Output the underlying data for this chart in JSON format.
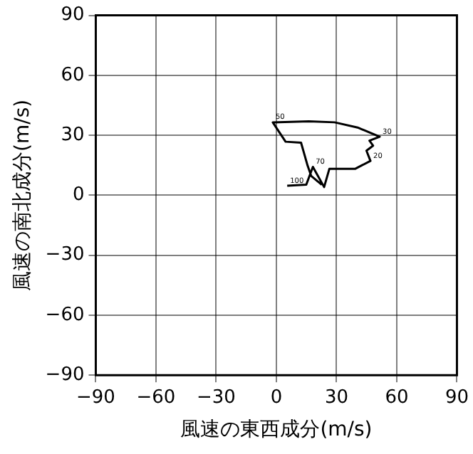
{
  "chart_data": {
    "type": "line",
    "xlabel": "風速の東西成分(m/s)",
    "ylabel": "風速の南北成分(m/s)",
    "xlim": [
      -90,
      90
    ],
    "ylim": [
      -90,
      90
    ],
    "xticks": [
      -90,
      -60,
      -30,
      0,
      30,
      60,
      90
    ],
    "yticks": [
      -90,
      -60,
      -30,
      0,
      30,
      60,
      90
    ],
    "grid": true,
    "marker": "none",
    "line_style": "solid",
    "series": [
      {
        "color": "#000000",
        "x": [
          5.4,
          14.9,
          18.2,
          23.8,
          26.4,
          39.2,
          46.9,
          44.9,
          48.2,
          46.4,
          51.5,
          40.5,
          29.0,
          16.2,
          -1.8,
          4.6,
          12.3,
          15.6,
          17.4,
          22.6
        ],
        "values": [
          4.8,
          5.3,
          14.2,
          4.1,
          13.2,
          13.2,
          17.2,
          22.3,
          24.8,
          27.3,
          29.3,
          33.9,
          36.5,
          37.0,
          36.5,
          26.8,
          26.3,
          14.7,
          9.6,
          5.3
        ]
      }
    ],
    "annotations": [
      {
        "text": "100",
        "x": 5.4,
        "y": 4.8
      },
      {
        "text": "70",
        "x": 18.2,
        "y": 14.2
      },
      {
        "text": "20",
        "x": 46.9,
        "y": 17.2
      },
      {
        "text": "30",
        "x": 51.5,
        "y": 29.3
      },
      {
        "text": "50",
        "x": -1.8,
        "y": 36.5
      }
    ]
  }
}
